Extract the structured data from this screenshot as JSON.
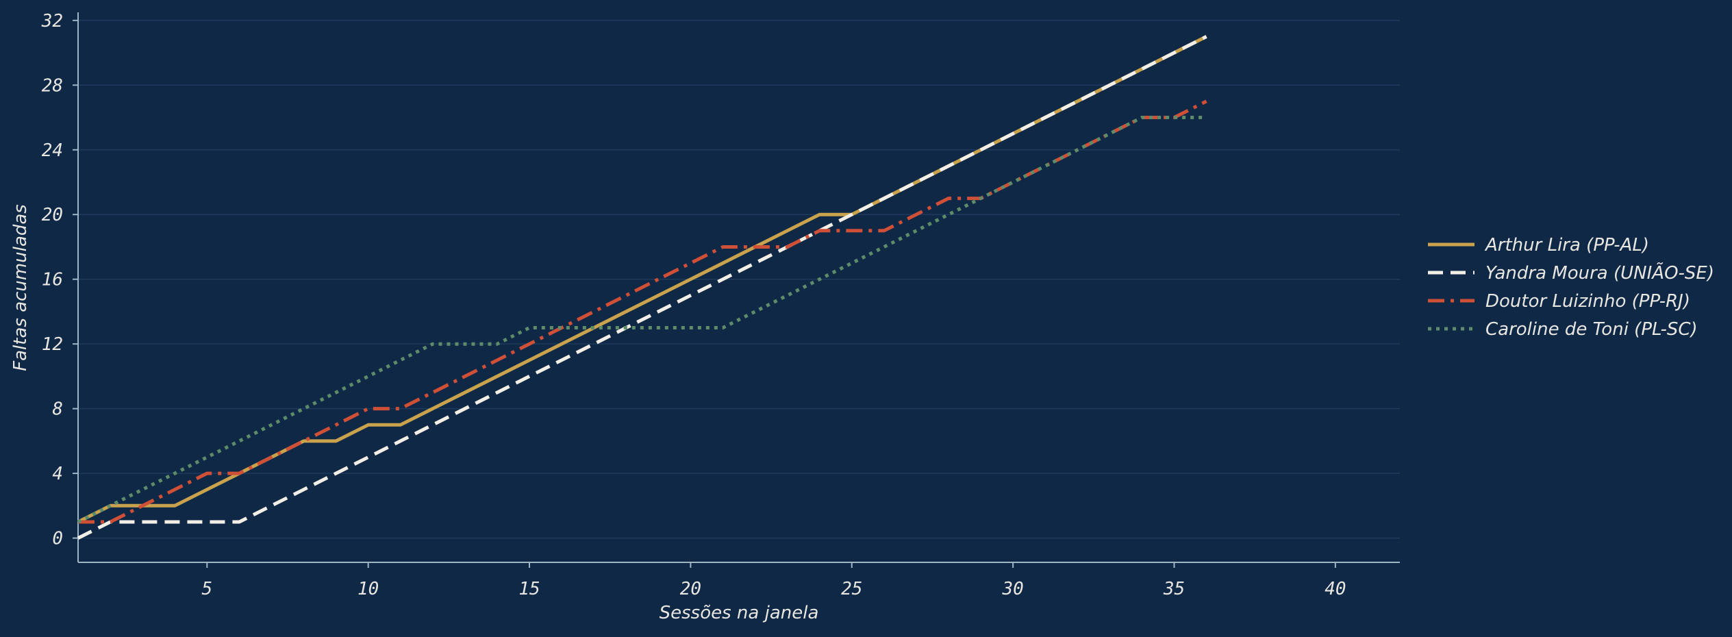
{
  "chart_data": {
    "type": "line",
    "xlabel": "Sessões na janela",
    "ylabel": "Faltas acumuladas",
    "xlim": [
      1,
      42
    ],
    "ylim": [
      -1.5,
      32.5
    ],
    "xticks": [
      5,
      10,
      15,
      20,
      25,
      30,
      35,
      40
    ],
    "yticks": [
      0,
      4,
      8,
      12,
      16,
      20,
      24,
      28,
      32
    ],
    "grid": "horizontal",
    "legend_position": "right",
    "series": [
      {
        "name": "Arthur Lira (PP-AL)",
        "color": "#c9a24e",
        "style": "solid",
        "x": [
          1,
          2,
          3,
          4,
          5,
          6,
          7,
          8,
          9,
          10,
          11,
          12,
          13,
          14,
          15,
          16,
          17,
          18,
          19,
          20,
          21,
          22,
          23,
          24,
          25,
          26,
          27,
          28,
          29,
          30,
          31,
          32,
          33,
          34,
          35,
          36
        ],
        "y": [
          1,
          2,
          2,
          2,
          3,
          4,
          5,
          6,
          6,
          7,
          7,
          8,
          9,
          10,
          11,
          12,
          13,
          14,
          15,
          16,
          17,
          18,
          19,
          20,
          20,
          21,
          22,
          23,
          24,
          25,
          26,
          27,
          28,
          29,
          30,
          31
        ]
      },
      {
        "name": "Yandra Moura (UNIÃO-SE)",
        "color": "#f3efe6",
        "style": "dashed",
        "x": [
          1,
          2,
          3,
          4,
          5,
          6,
          7,
          8,
          9,
          10,
          11,
          12,
          13,
          14,
          15,
          16,
          17,
          18,
          19,
          20,
          21,
          22,
          23,
          24,
          25,
          26,
          27,
          28,
          29,
          30,
          31,
          32,
          33,
          34,
          35,
          36
        ],
        "y": [
          0,
          1,
          1,
          1,
          1,
          1,
          2,
          3,
          4,
          5,
          6,
          7,
          8,
          9,
          10,
          11,
          12,
          13,
          14,
          15,
          16,
          17,
          18,
          19,
          20,
          21,
          22,
          23,
          24,
          25,
          26,
          27,
          28,
          29,
          30,
          31
        ]
      },
      {
        "name": "Doutor Luizinho (PP-RJ)",
        "color": "#cf4f37",
        "style": "dashdot",
        "x": [
          1,
          2,
          3,
          4,
          5,
          6,
          7,
          8,
          9,
          10,
          11,
          12,
          13,
          14,
          15,
          16,
          17,
          18,
          19,
          20,
          21,
          22,
          23,
          24,
          25,
          26,
          27,
          28,
          29,
          30,
          31,
          32,
          33,
          34,
          35,
          36
        ],
        "y": [
          1,
          1,
          2,
          3,
          4,
          4,
          5,
          6,
          7,
          8,
          8,
          9,
          10,
          11,
          12,
          13,
          14,
          15,
          16,
          17,
          18,
          18,
          18,
          19,
          19,
          19,
          20,
          21,
          21,
          22,
          23,
          24,
          25,
          26,
          26,
          27
        ]
      },
      {
        "name": "Caroline de Toni (PL-SC)",
        "color": "#5e8c6a",
        "style": "dotted",
        "x": [
          1,
          2,
          3,
          4,
          5,
          6,
          7,
          8,
          9,
          10,
          11,
          12,
          13,
          14,
          15,
          16,
          17,
          18,
          19,
          20,
          21,
          22,
          23,
          24,
          25,
          26,
          27,
          28,
          29,
          30,
          31,
          32,
          33,
          34,
          35,
          36
        ],
        "y": [
          1,
          2,
          3,
          4,
          5,
          6,
          7,
          8,
          9,
          10,
          11,
          12,
          12,
          12,
          13,
          13,
          13,
          13,
          13,
          13,
          13,
          14,
          15,
          16,
          17,
          18,
          19,
          20,
          21,
          22,
          23,
          24,
          25,
          26,
          26,
          26
        ]
      }
    ]
  }
}
